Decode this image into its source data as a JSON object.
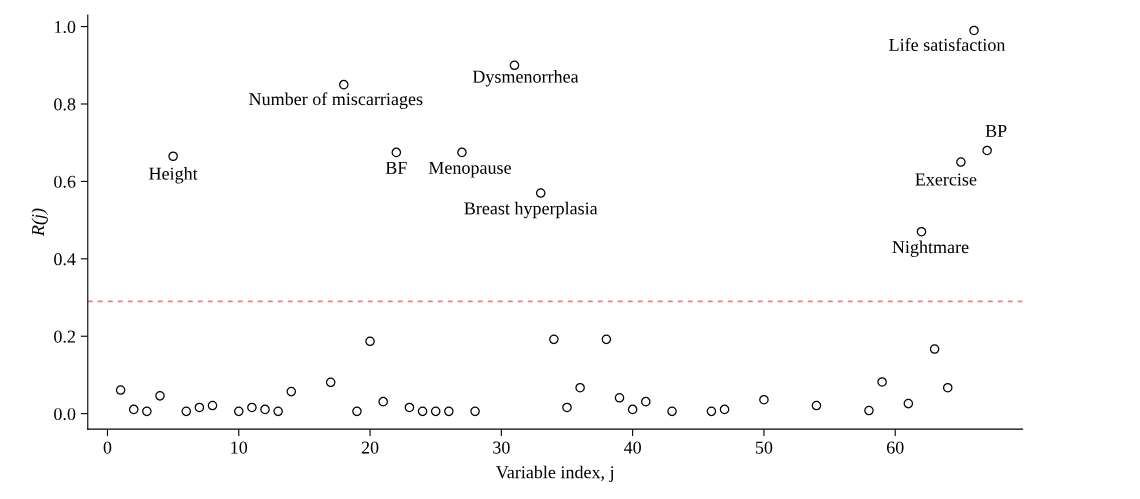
{
  "chart_data": {
    "type": "scatter",
    "xlabel": "Variable index, j",
    "ylabel": "R(j)",
    "series": [
      {
        "color": "#000000",
        "x": [
          1,
          2,
          3,
          4,
          5,
          6,
          7,
          8,
          10,
          11,
          12,
          13,
          14,
          17,
          18,
          19,
          20,
          21,
          22,
          23,
          24,
          25,
          26,
          27,
          28,
          31,
          33,
          34,
          35,
          36,
          38,
          39,
          40,
          41,
          43,
          46,
          47,
          50,
          54,
          58,
          59,
          61,
          62,
          63,
          64,
          65,
          66,
          67
        ],
        "values": [
          0.061,
          0.011,
          0.006,
          0.046,
          0.665,
          0.006,
          0.016,
          0.021,
          0.006,
          0.016,
          0.011,
          0.006,
          0.057,
          0.081,
          0.85,
          0.006,
          0.187,
          0.031,
          0.675,
          0.016,
          0.006,
          0.006,
          0.006,
          0.675,
          0.006,
          0.9,
          0.57,
          0.192,
          0.016,
          0.067,
          0.192,
          0.041,
          0.011,
          0.031,
          0.006,
          0.006,
          0.011,
          0.036,
          0.021,
          0.008,
          0.082,
          0.026,
          0.47,
          0.167,
          0.067,
          0.65,
          0.99,
          0.68
        ]
      }
    ],
    "marker": "circle",
    "xlim": [
      -1.5,
      69.7
    ],
    "ylim": [
      -0.04,
      1.03
    ],
    "xticks": [
      0,
      10,
      20,
      30,
      40,
      50,
      60
    ],
    "yticks": [
      {
        "value": 0,
        "label": "0.0"
      },
      0.2,
      0.4,
      0.6,
      0.8,
      {
        "value": 1,
        "label": "1.0"
      }
    ],
    "ref_lines": [
      {
        "axis": "y",
        "value": 0.29,
        "color": "#f08080",
        "line_style": "dashed"
      }
    ],
    "annotations": [
      {
        "text": "Height",
        "x": 5,
        "y": 0.665
      },
      {
        "text": "Number of miscarriages",
        "x": 18,
        "y": 0.85
      },
      {
        "text": "BF",
        "x": 22,
        "y": 0.675
      },
      {
        "text": "Menopause",
        "x": 27,
        "y": 0.675
      },
      {
        "text": "Dysmenorrhea",
        "x": 31,
        "y": 0.9
      },
      {
        "text": "Breast hyperplasia",
        "x": 33,
        "y": 0.57
      },
      {
        "text": "Nightmare",
        "x": 62,
        "y": 0.47
      },
      {
        "text": "Exercise",
        "x": 65,
        "y": 0.65
      },
      {
        "text": "BP",
        "x": 67,
        "y": 0.68
      },
      {
        "text": "Life satisfaction",
        "x": 66,
        "y": 0.99
      }
    ],
    "grid": false,
    "legend": false
  }
}
